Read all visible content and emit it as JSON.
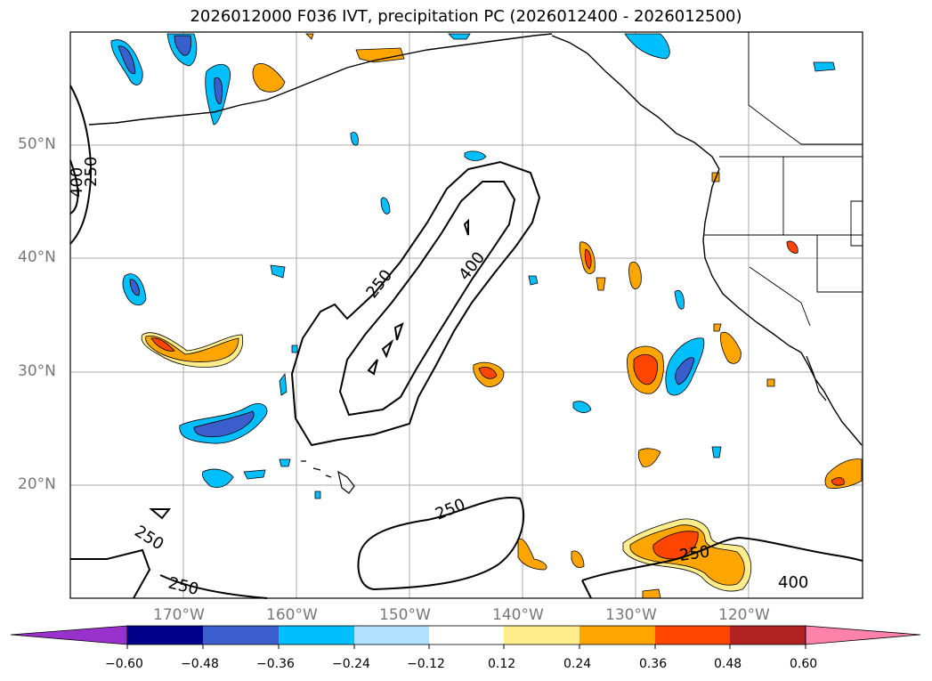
{
  "title": "2026012000 F036 IVT, precipitation PC (2026012400 - 2026012500)",
  "lat_labels": [
    "50°N",
    "40°N",
    "30°N",
    "20°N"
  ],
  "lon_labels": [
    "170°W",
    "160°W",
    "150°W",
    "140°W",
    "130°W",
    "120°W"
  ],
  "contour_labels": {
    "upper_left_400": "400",
    "upper_left_250": "250",
    "center_250": "250",
    "center_400": "400",
    "south_250_a": "250",
    "south_250_b": "250",
    "south_250_c": "250",
    "south_250_d": "250",
    "south_400": "400"
  },
  "colorbar": {
    "ticks": [
      "−0.60",
      "−0.48",
      "−0.36",
      "−0.24",
      "−0.12",
      "0.12",
      "0.24",
      "0.36",
      "0.48",
      "0.60"
    ],
    "colors": [
      "#9932cc",
      "#00008b",
      "#3a5fcd",
      "#00bfff",
      "#b0e2ff",
      "#ffffff",
      "#ffec8b",
      "#ffa500",
      "#ff4500",
      "#b22222",
      "#ff82ab"
    ]
  }
}
